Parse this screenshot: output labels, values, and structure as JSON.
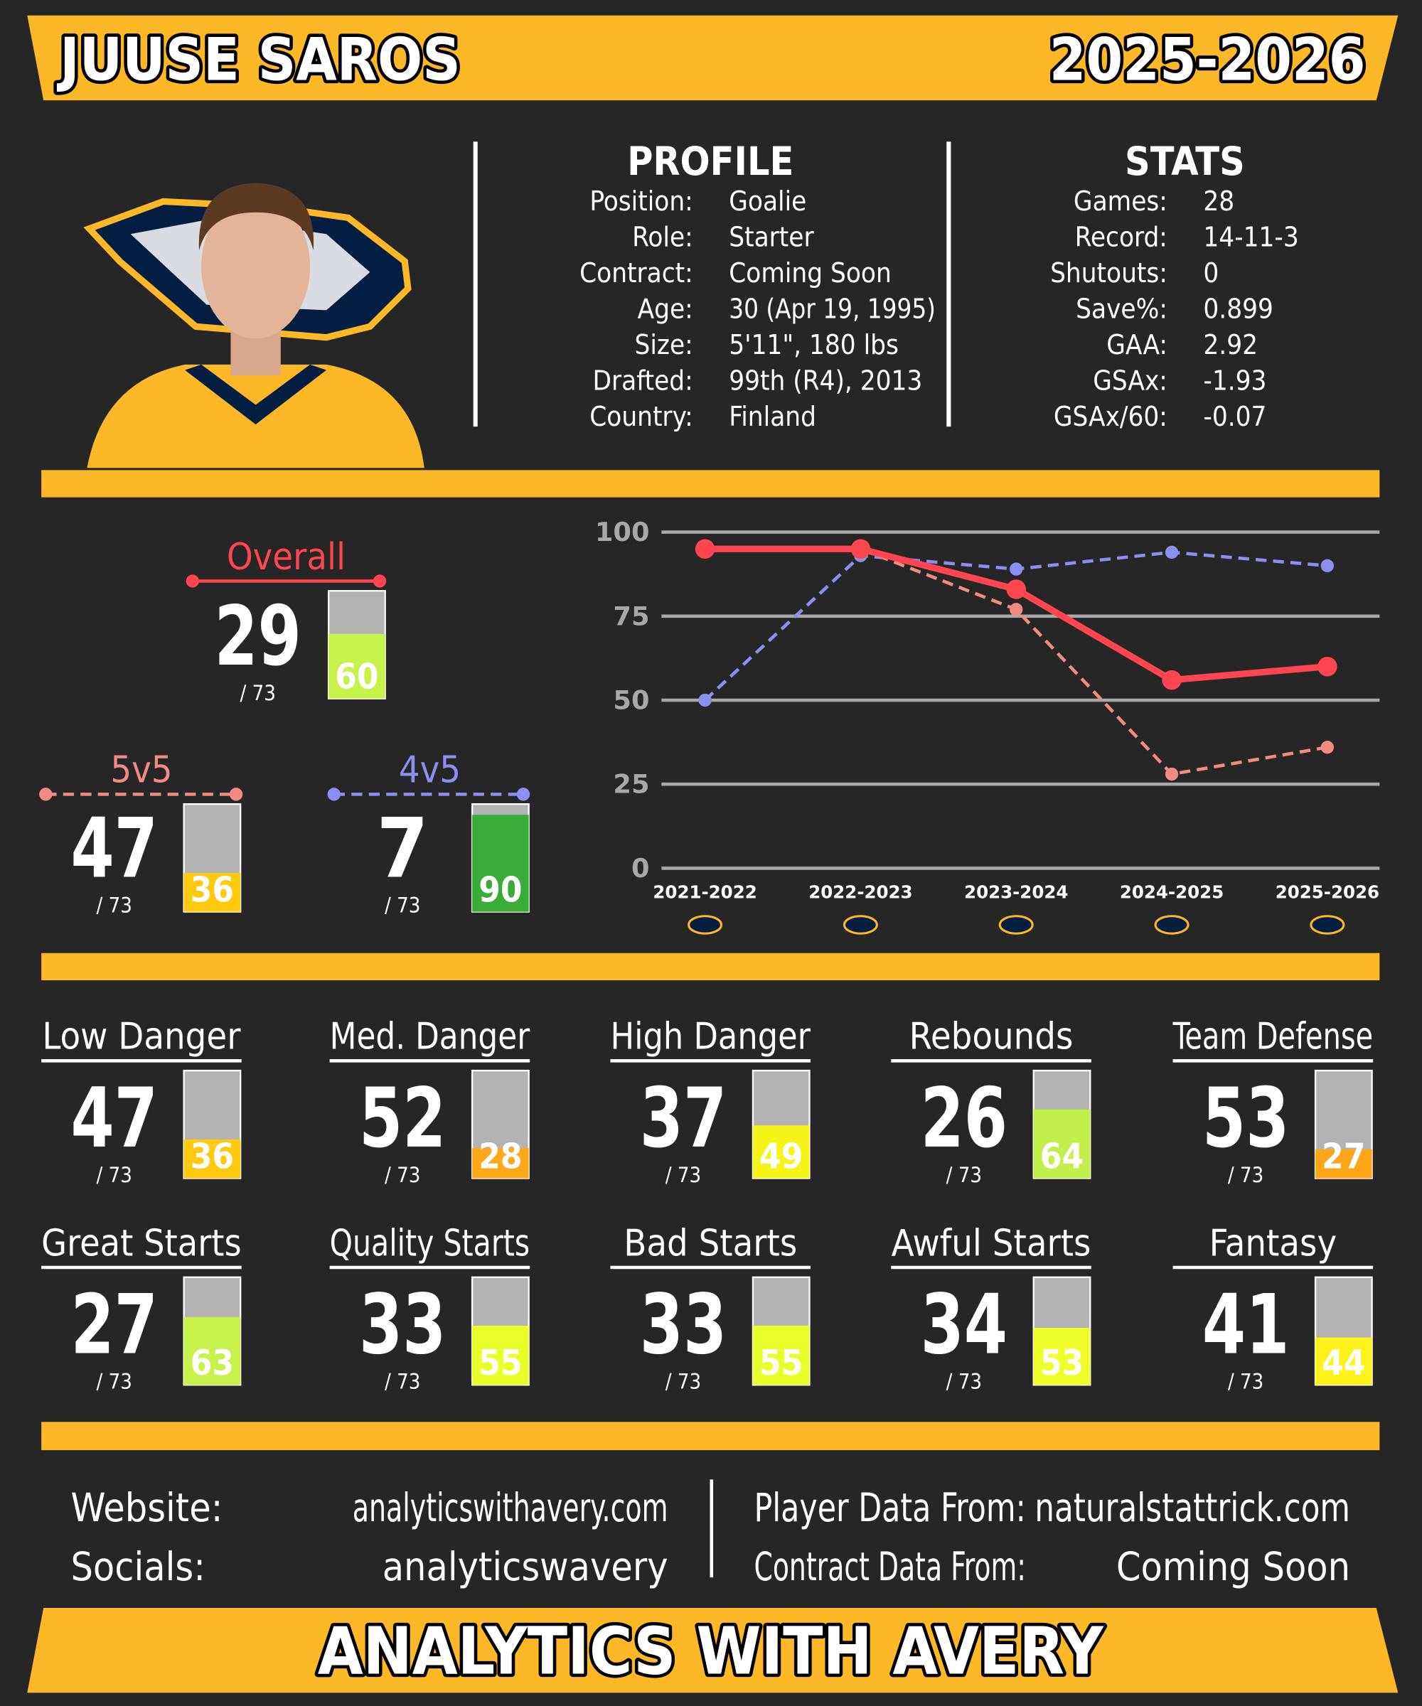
{
  "header": {
    "name": "JUUSE SAROS",
    "season": "2025-2026"
  },
  "profile": {
    "title": "PROFILE",
    "rows": [
      {
        "label": "Position:",
        "value": "Goalie"
      },
      {
        "label": "Role:",
        "value": "Starter"
      },
      {
        "label": "Contract:",
        "value": "Coming Soon"
      },
      {
        "label": "Age:",
        "value": "30 (Apr 19, 1995)"
      },
      {
        "label": "Size:",
        "value": "5'11\", 180 lbs"
      },
      {
        "label": "Drafted:",
        "value": "99th (R4), 2013"
      },
      {
        "label": "Country:",
        "value": "Finland"
      }
    ]
  },
  "stats": {
    "title": "STATS",
    "rows": [
      {
        "label": "Games:",
        "value": "28"
      },
      {
        "label": "Record:",
        "value": "14-11-3"
      },
      {
        "label": "Shutouts:",
        "value": "0"
      },
      {
        "label": "Save%:",
        "value": "0.899"
      },
      {
        "label": "GAA:",
        "value": "2.92"
      },
      {
        "label": "GSAx:",
        "value": "-1.93"
      },
      {
        "label": "GSAx/60:",
        "value": "-0.07"
      }
    ]
  },
  "ratings": [
    {
      "rank": 29,
      "out_of": "/ 73",
      "percentile": 60,
      "bar_color": "#c6f24a"
    },
    {
      "rank": 47,
      "out_of": "/ 73",
      "percentile": 36,
      "bar_color": "#ffc90e"
    },
    {
      "rank": 7,
      "out_of": "/ 73",
      "percentile": 90,
      "bar_color": "#3aac3a"
    }
  ],
  "chart_data": {
    "type": "line",
    "categories": [
      "2021-2022",
      "2022-2023",
      "2023-2024",
      "2024-2025",
      "2025-2026"
    ],
    "series": [
      {
        "name": "Overall",
        "color": "#ff4550",
        "line_style": "solid",
        "values": [
          95,
          95,
          83,
          56,
          60
        ]
      },
      {
        "name": "5v5",
        "color": "#f28b82",
        "line_style": "dashed",
        "values": [
          95,
          95,
          77,
          28,
          36
        ]
      },
      {
        "name": "4v5",
        "color": "#8b8ff0",
        "line_style": "dashed",
        "values": [
          50,
          93,
          89,
          94,
          90
        ]
      }
    ],
    "ylim": [
      0,
      100
    ],
    "yticks": [
      0,
      25,
      50,
      75,
      100
    ],
    "grid": true
  },
  "metrics": [
    {
      "label": "Low Danger",
      "rank": 47,
      "out_of": "/ 73",
      "percentile": 36,
      "bar_color": "#ffc90e"
    },
    {
      "label": "Med. Danger",
      "rank": 52,
      "out_of": "/ 73",
      "percentile": 28,
      "bar_color": "#ffa81a"
    },
    {
      "label": "High Danger",
      "rank": 37,
      "out_of": "/ 73",
      "percentile": 49,
      "bar_color": "#f5f51a"
    },
    {
      "label": "Rebounds",
      "rank": 26,
      "out_of": "/ 73",
      "percentile": 64,
      "bar_color": "#c2f04a"
    },
    {
      "label": "Team Defense",
      "rank": 53,
      "out_of": "/ 73",
      "percentile": 27,
      "bar_color": "#ffa51a"
    },
    {
      "label": "Great Starts",
      "rank": 27,
      "out_of": "/ 73",
      "percentile": 63,
      "bar_color": "#c6f24a"
    },
    {
      "label": "Quality Starts",
      "rank": 33,
      "out_of": "/ 73",
      "percentile": 55,
      "bar_color": "#e9ff29"
    },
    {
      "label": "Bad Starts",
      "rank": 33,
      "out_of": "/ 73",
      "percentile": 55,
      "bar_color": "#e9ff29"
    },
    {
      "label": "Awful Starts",
      "rank": 34,
      "out_of": "/ 73",
      "percentile": 53,
      "bar_color": "#eeff29"
    },
    {
      "label": "Fantasy",
      "rank": 41,
      "out_of": "/ 73",
      "percentile": 44,
      "bar_color": "#fff21a"
    }
  ],
  "footer": {
    "left": [
      {
        "label": "Website:",
        "value": "analyticswithavery.com"
      },
      {
        "label": "Socials:",
        "value": "analyticswavery"
      }
    ],
    "right": [
      {
        "label": "Player Data From:",
        "value": "naturalstattrick.com"
      },
      {
        "label": "Contract Data From:",
        "value": "Coming Soon"
      }
    ]
  },
  "brand": "ANALYTICS WITH AVERY"
}
